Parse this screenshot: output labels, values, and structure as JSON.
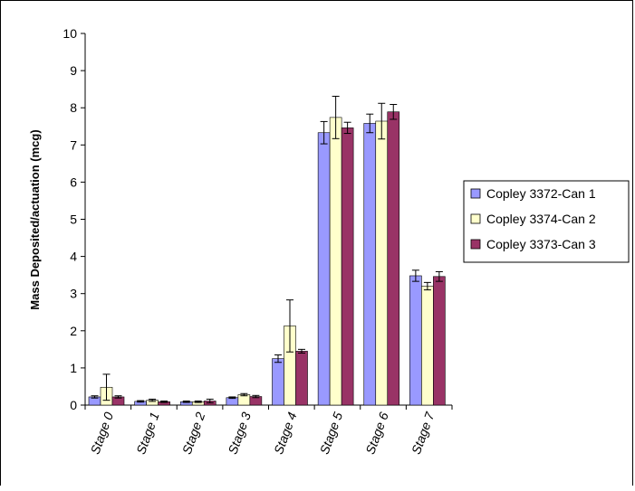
{
  "chart_data": {
    "type": "bar",
    "title": "",
    "xlabel": "",
    "ylabel": "Mass Deposited/actuation (mcg)",
    "ylim": [
      0,
      10
    ],
    "yticks": [
      0,
      1,
      2,
      3,
      4,
      5,
      6,
      7,
      8,
      9,
      10
    ],
    "grid": false,
    "legend_position": "right",
    "error_bars": true,
    "categories": [
      "Stage 0",
      "Stage 1",
      "Stage 2",
      "Stage 3",
      "Stage 4",
      "Stage 5",
      "Stage 6",
      "Stage 7"
    ],
    "series": [
      {
        "name": "Copley 3372-Can 1",
        "color": "#9999ff",
        "values": [
          0.22,
          0.1,
          0.09,
          0.2,
          1.25,
          7.33,
          7.58,
          3.48
        ],
        "errors": [
          0.03,
          0.02,
          0.02,
          0.02,
          0.1,
          0.3,
          0.25,
          0.15
        ]
      },
      {
        "name": "Copley 3374-Can 2",
        "color": "#ffffcc",
        "values": [
          0.48,
          0.13,
          0.09,
          0.28,
          2.13,
          7.74,
          7.64,
          3.2
        ],
        "errors": [
          0.35,
          0.03,
          0.02,
          0.03,
          0.7,
          0.57,
          0.48,
          0.1
        ]
      },
      {
        "name": "Copley 3373-Can 3",
        "color": "#993366",
        "values": [
          0.22,
          0.09,
          0.11,
          0.23,
          1.45,
          7.46,
          7.89,
          3.46
        ],
        "errors": [
          0.03,
          0.02,
          0.05,
          0.03,
          0.05,
          0.15,
          0.2,
          0.13
        ]
      }
    ]
  }
}
